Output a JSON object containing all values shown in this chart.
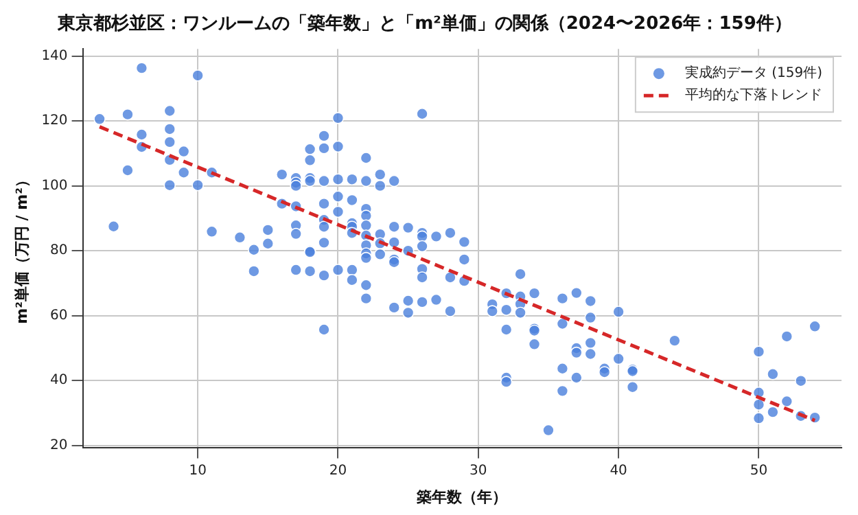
{
  "chart_data": {
    "type": "scatter",
    "title": "東京都杉並区：ワンルームの「築年数」と「m²単価」の関係（2024〜2026年：159件）",
    "xlabel": "築年数（年）",
    "ylabel": "m²単価（万円 / m²）",
    "xlim": [
      1.8,
      55.9
    ],
    "ylim": [
      19.4,
      142.2
    ],
    "xticks": [
      10,
      20,
      30,
      40,
      50
    ],
    "yticks": [
      20,
      40,
      60,
      80,
      100,
      120,
      140
    ],
    "grid": true,
    "legend": "top right",
    "series": [
      {
        "name": "実成約データ (159件)",
        "color": "#4a7fdc",
        "marker": "circle",
        "x": [
          3,
          4,
          5,
          5,
          6,
          6,
          6,
          8,
          8,
          8,
          8,
          8,
          9,
          9,
          10,
          10,
          11,
          11,
          13,
          14,
          14,
          15,
          15,
          16,
          16,
          17,
          17,
          17,
          17,
          17,
          17,
          17,
          18,
          18,
          18,
          18,
          18,
          18,
          18,
          19,
          19,
          19,
          19,
          19,
          19,
          19,
          19,
          19,
          20,
          20,
          20,
          20,
          20,
          20,
          21,
          21,
          21,
          21,
          21,
          21,
          21,
          22,
          22,
          22,
          22,
          22,
          22,
          22,
          22,
          22,
          22,
          22,
          23,
          23,
          23,
          23,
          23,
          24,
          24,
          24,
          24,
          24,
          24,
          25,
          25,
          25,
          25,
          26,
          26,
          26,
          26,
          26,
          26,
          26,
          27,
          27,
          28,
          28,
          28,
          29,
          29,
          29,
          31,
          31,
          32,
          32,
          32,
          32,
          32,
          33,
          33,
          33,
          33,
          34,
          34,
          34,
          34,
          35,
          36,
          36,
          36,
          36,
          37,
          37,
          37,
          37,
          38,
          38,
          38,
          38,
          39,
          39,
          40,
          40,
          41,
          41,
          41,
          44,
          50,
          50,
          50,
          50,
          51,
          51,
          52,
          52,
          53,
          53,
          54,
          54
        ],
        "values": [
          120.6,
          87.5,
          122,
          104.8,
          136.3,
          115.8,
          112,
          123.1,
          117.5,
          113.5,
          108,
          100.2,
          110.6,
          104.1,
          134,
          100.2,
          104.1,
          85.9,
          84.1,
          80.3,
          73.7,
          86.4,
          82.2,
          103.5,
          94.5,
          102.4,
          101,
          100,
          93.7,
          87.8,
          85.2,
          74.1,
          111.3,
          107.9,
          102.4,
          101.5,
          79.9,
          79.6,
          73.7,
          115.4,
          111.6,
          101.5,
          94.5,
          89.5,
          87.4,
          82.5,
          72.4,
          55.7,
          120.9,
          112.1,
          102,
          96.7,
          92,
          74.1,
          102,
          95.6,
          88.5,
          87.4,
          85.5,
          74.1,
          71,
          108.6,
          101.5,
          92.9,
          90.8,
          87.8,
          84.7,
          81.7,
          79.2,
          77.8,
          69.4,
          65.3,
          103.5,
          100,
          85.1,
          82.3,
          78.9,
          101.5,
          87.4,
          82.6,
          77.3,
          76.5,
          62.5,
          87.1,
          80,
          64.6,
          60.9,
          122.2,
          85.5,
          84.4,
          81.4,
          74.4,
          71.8,
          64.2,
          84.4,
          64.9,
          85.5,
          71.8,
          61.4,
          82.7,
          77.3,
          70.7,
          63.5,
          61.4,
          66.9,
          61.8,
          55.7,
          40.9,
          39.6,
          72.8,
          65.9,
          63.6,
          60.9,
          66.9,
          56,
          55.4,
          51.2,
          24.7,
          65.3,
          57.5,
          43.7,
          36.8,
          67,
          50,
          48.6,
          40.9,
          64.5,
          59.4,
          51.6,
          48.2,
          43.7,
          42.6,
          61.2,
          46.7,
          43.4,
          42.9,
          38,
          52.3,
          48.9,
          36.3,
          32.6,
          28.4,
          42,
          30.3,
          53.6,
          33.6,
          39.9,
          29.1,
          56.7,
          28.6
        ]
      },
      {
        "name": "平均的な下落トレンド",
        "type": "line",
        "color": "#d62728",
        "line_style": "dashed",
        "marker": "none",
        "x": [
          3,
          54
        ],
        "values": [
          118.2,
          27.7
        ]
      }
    ]
  }
}
